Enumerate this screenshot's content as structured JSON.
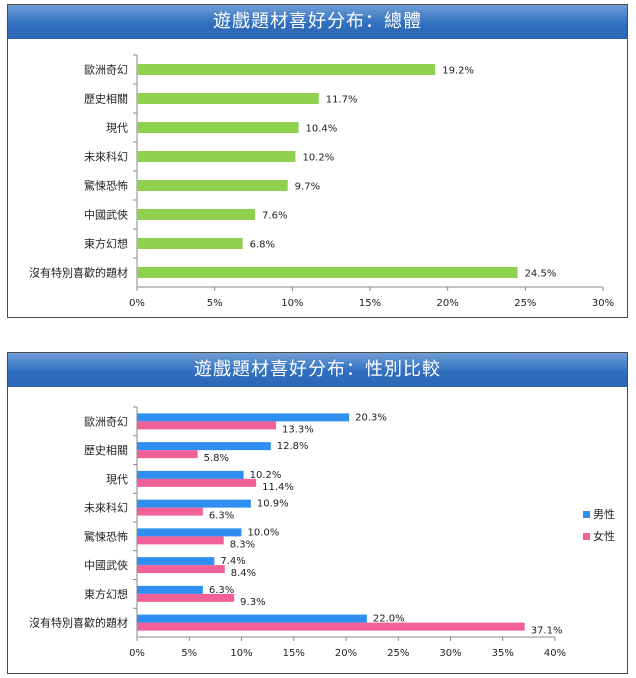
{
  "chart_data": [
    {
      "type": "bar",
      "orientation": "horizontal",
      "title": "遊戲題材喜好分布：總體",
      "categories": [
        "歐洲奇幻",
        "歷史相關",
        "現代",
        "未來科幻",
        "驚悚恐怖",
        "中國武俠",
        "東方幻想",
        "沒有特別喜歡的題材"
      ],
      "values": [
        19.2,
        11.7,
        10.4,
        10.2,
        9.7,
        7.6,
        6.8,
        24.5
      ],
      "value_labels": [
        "19.2%",
        "11.7%",
        "10.4%",
        "10.2%",
        "9.7%",
        "7.6%",
        "6.8%",
        "24.5%"
      ],
      "xlim": [
        0,
        30
      ],
      "xticks": [
        "0%",
        "5%",
        "10%",
        "15%",
        "20%",
        "25%",
        "30%"
      ],
      "colors": {
        "bar": "#8fd14f"
      }
    },
    {
      "type": "bar",
      "orientation": "horizontal",
      "title": "遊戲題材喜好分布：性別比較",
      "categories": [
        "歐洲奇幻",
        "歷史相關",
        "現代",
        "未來科幻",
        "驚悚恐怖",
        "中國武俠",
        "東方幻想",
        "沒有特別喜歡的題材"
      ],
      "series": [
        {
          "name": "男性",
          "color": "#2e8ff0",
          "values": [
            20.3,
            12.8,
            10.2,
            10.9,
            10.0,
            7.4,
            6.3,
            22.0
          ],
          "value_labels": [
            "20.3%",
            "12.8%",
            "10.2%",
            "10.9%",
            "10.0%",
            "7.4%",
            "6.3%",
            "22.0%"
          ]
        },
        {
          "name": "女性",
          "color": "#f2609a",
          "values": [
            13.3,
            5.8,
            11.4,
            6.3,
            8.3,
            8.4,
            9.3,
            37.1
          ],
          "value_labels": [
            "13.3%",
            "5.8%",
            "11.4%",
            "6.3%",
            "8.3%",
            "8.4%",
            "9.3%",
            "37.1%"
          ]
        }
      ],
      "xlim": [
        0,
        40
      ],
      "xticks": [
        "0%",
        "5%",
        "10%",
        "15%",
        "20%",
        "25%",
        "30%",
        "35%",
        "40%"
      ],
      "legend": "right"
    }
  ]
}
